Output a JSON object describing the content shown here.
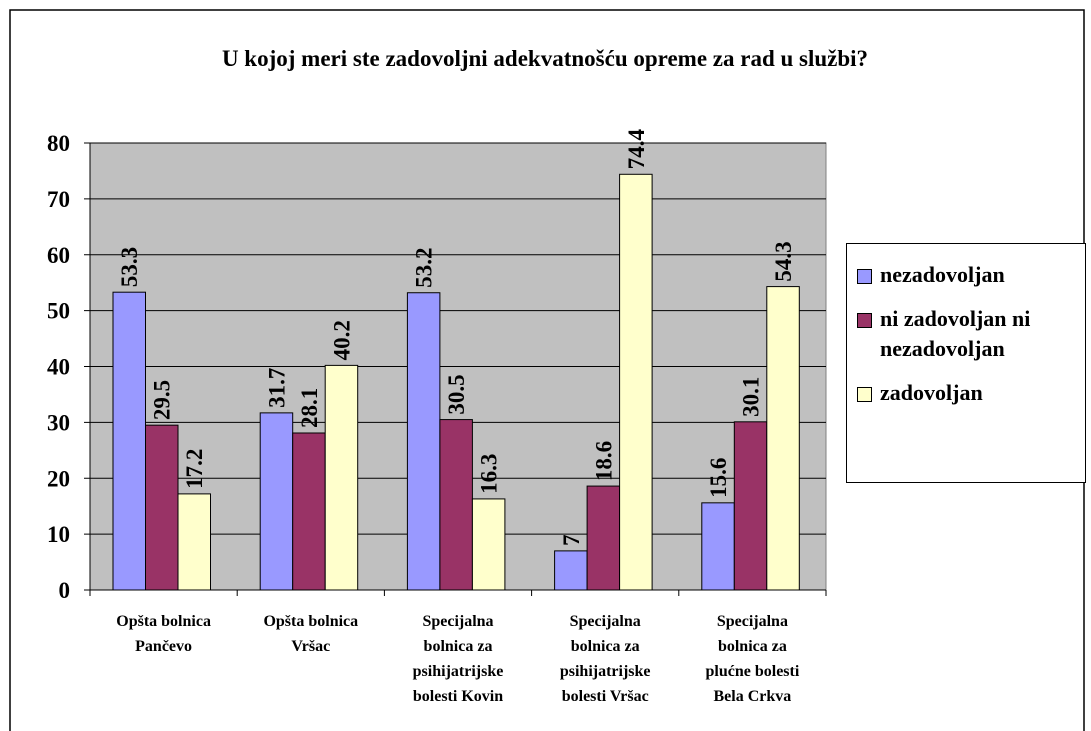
{
  "chart_data": {
    "type": "bar",
    "title": "U kojoj meri ste zadovoljni adekvatnošću opreme za rad u službi?",
    "categories": [
      [
        "Opšta bolnica",
        "Pančevo"
      ],
      [
        "Opšta bolnica",
        "Vršac"
      ],
      [
        "Specijalna",
        "bolnica za",
        "psihijatrijske",
        "bolesti Kovin"
      ],
      [
        "Specijalna",
        "bolnica za",
        "psihijatrijske",
        "bolesti Vršac"
      ],
      [
        "Specijalna",
        "bolnica za",
        "plućne bolesti",
        "Bela Crkva"
      ]
    ],
    "series": [
      {
        "name": "nezadovoljan",
        "color": "#9999ff",
        "values": [
          53.3,
          31.7,
          53.2,
          7,
          15.6
        ]
      },
      {
        "name": "ni zadovoljan ni nezadovoljan",
        "color": "#993366",
        "values": [
          29.5,
          28.1,
          30.5,
          18.6,
          30.1
        ]
      },
      {
        "name": "zadovoljan",
        "color": "#ffffcc",
        "values": [
          17.2,
          40.2,
          16.3,
          74.4,
          54.3
        ]
      }
    ],
    "ylim": [
      0,
      80
    ],
    "yticks": [
      0,
      10,
      20,
      30,
      40,
      50,
      60,
      70,
      80
    ],
    "grid": true,
    "legend": "right"
  }
}
